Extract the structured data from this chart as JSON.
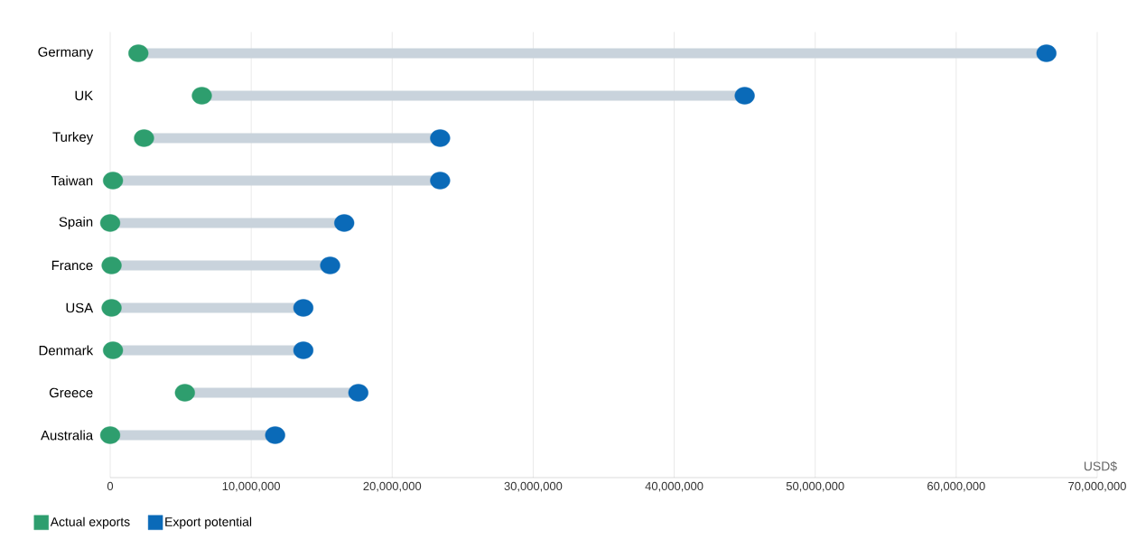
{
  "chart_data": {
    "type": "scatter",
    "orientation": "horizontal",
    "xlabel": "USD$",
    "categories": [
      "Germany",
      "UK",
      "Turkey",
      "Taiwan",
      "Spain",
      "France",
      "USA",
      "Denmark",
      "Greece",
      "Australia"
    ],
    "series": [
      {
        "name": "Actual exports",
        "color": "#2e9e6e",
        "values": [
          2000000,
          6500000,
          2400000,
          200000,
          0,
          100000,
          100000,
          200000,
          5300000,
          0
        ]
      },
      {
        "name": "Export potential",
        "color": "#0a6ab8",
        "values": [
          66400000,
          45000000,
          23400000,
          23400000,
          16600000,
          15600000,
          13700000,
          13700000,
          17600000,
          11700000
        ]
      }
    ],
    "xlim": [
      0,
      70000000
    ],
    "xticks": [
      0,
      {
        "value": 10000000,
        "label": "10,000,000"
      },
      {
        "value": 20000000,
        "label": "20,000,000"
      },
      {
        "value": 30000000,
        "label": "30,000,000"
      },
      {
        "value": 40000000,
        "label": "40,000,000"
      },
      {
        "value": 50000000,
        "label": "50,000,000"
      },
      {
        "value": 60000000,
        "label": "60,000,000"
      },
      {
        "value": 70000000,
        "label": "70,000,000"
      }
    ],
    "grid": "x",
    "legend": "bottom left",
    "marker": "circle"
  }
}
